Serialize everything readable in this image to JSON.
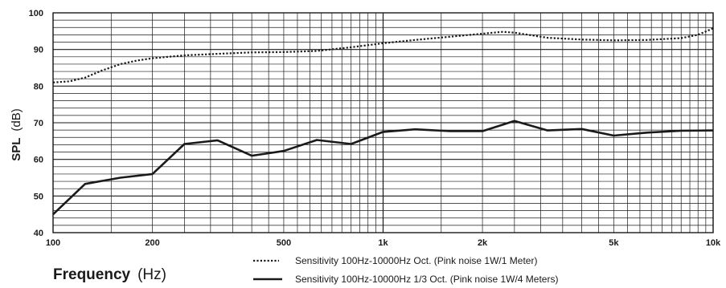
{
  "chart_data": {
    "type": "line",
    "title": "",
    "ylabel_bold": "SPL",
    "ylabel_unit": "(dB)",
    "xlabel_bold": "Frequency",
    "xlabel_unit": "(Hz)",
    "x_scale": "log",
    "xlim": [
      100,
      10000
    ],
    "ylim": [
      40,
      100
    ],
    "grid": true,
    "legend_position": "bottom-center",
    "x_ticks": [
      {
        "value": 100,
        "label": "100"
      },
      {
        "value": 200,
        "label": "200"
      },
      {
        "value": 500,
        "label": "500"
      },
      {
        "value": 1000,
        "label": "1k"
      },
      {
        "value": 2000,
        "label": "2k"
      },
      {
        "value": 5000,
        "label": "5k"
      },
      {
        "value": 10000,
        "label": "10k"
      }
    ],
    "y_ticks": [
      {
        "value": 40,
        "label": "40"
      },
      {
        "value": 50,
        "label": "50"
      },
      {
        "value": 60,
        "label": "60"
      },
      {
        "value": 70,
        "label": "70"
      },
      {
        "value": 80,
        "label": "80"
      },
      {
        "value": 90,
        "label": "90"
      },
      {
        "value": 100,
        "label": "100"
      }
    ],
    "series": [
      {
        "name": "Sensitivity 100Hz-10000Hz Oct. (Pink noise 1W/1 Meter)",
        "style": "dotted",
        "points": [
          [
            100,
            81
          ],
          [
            112,
            81.3
          ],
          [
            125,
            82.3
          ],
          [
            140,
            84.2
          ],
          [
            160,
            86
          ],
          [
            180,
            87
          ],
          [
            200,
            87.6
          ],
          [
            250,
            88.4
          ],
          [
            315,
            88.8
          ],
          [
            400,
            89.2
          ],
          [
            500,
            89.3
          ],
          [
            630,
            89.6
          ],
          [
            800,
            90.6
          ],
          [
            1000,
            91.7
          ],
          [
            1250,
            92.6
          ],
          [
            1600,
            93.5
          ],
          [
            2000,
            94.3
          ],
          [
            2300,
            94.8
          ],
          [
            2500,
            94.6
          ],
          [
            3150,
            93.2
          ],
          [
            4000,
            92.7
          ],
          [
            5000,
            92.5
          ],
          [
            6300,
            92.6
          ],
          [
            8000,
            93.1
          ],
          [
            9000,
            94
          ],
          [
            10000,
            95.8
          ]
        ]
      },
      {
        "name": "Sensitivity 100Hz-10000Hz 1/3 Oct. (Pink noise 1W/4 Meters)",
        "style": "solid",
        "points": [
          [
            100,
            45
          ],
          [
            125,
            53.3
          ],
          [
            160,
            55
          ],
          [
            200,
            56
          ],
          [
            250,
            64.2
          ],
          [
            315,
            65.2
          ],
          [
            400,
            61
          ],
          [
            500,
            62.3
          ],
          [
            630,
            65.3
          ],
          [
            800,
            64.2
          ],
          [
            1000,
            67.5
          ],
          [
            1250,
            68.2
          ],
          [
            1600,
            67.7
          ],
          [
            2000,
            67.7
          ],
          [
            2500,
            70.5
          ],
          [
            3150,
            67.9
          ],
          [
            4000,
            68.3
          ],
          [
            5000,
            66.5
          ],
          [
            6300,
            67.3
          ],
          [
            8000,
            67.8
          ],
          [
            10000,
            67.9
          ]
        ]
      }
    ]
  }
}
